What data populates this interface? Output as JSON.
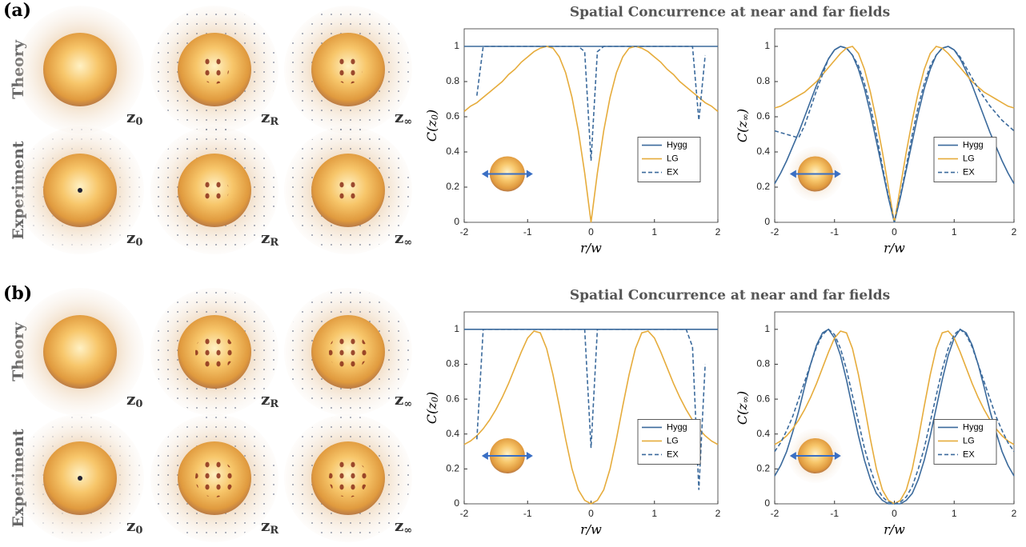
{
  "panels": [
    {
      "label": "(a)",
      "title": "Spatial Concurrence at near and far fields",
      "rows": [
        "Theory",
        "Experiment"
      ],
      "image_labels": [
        [
          "z",
          "0"
        ],
        [
          "z",
          "R"
        ],
        [
          "z",
          "∞"
        ],
        [
          "z",
          "0"
        ],
        [
          "z",
          "R"
        ],
        [
          "z",
          "∞"
        ]
      ]
    },
    {
      "label": "(b)",
      "title": "Spatial Concurrence at near and far fields",
      "rows": [
        "Theory",
        "Experiment"
      ],
      "image_labels": [
        [
          "z",
          "0"
        ],
        [
          "z",
          "R"
        ],
        [
          "z",
          "∞"
        ],
        [
          "z",
          "0"
        ],
        [
          "z",
          "R"
        ],
        [
          "z",
          "∞"
        ]
      ]
    }
  ],
  "chart_data": [
    {
      "type": "line",
      "xlabel": "r/w",
      "ylabel": [
        "C(z",
        "0",
        ")"
      ],
      "x": [
        -2,
        -1.9,
        -1.8,
        -1.7,
        -1.6,
        -1.5,
        -1.4,
        -1.3,
        -1.2,
        -1.1,
        -1,
        -0.9,
        -0.8,
        -0.7,
        -0.6,
        -0.5,
        -0.4,
        -0.3,
        -0.2,
        -0.1,
        0,
        0.1,
        0.2,
        0.3,
        0.4,
        0.5,
        0.6,
        0.7,
        0.8,
        0.9,
        1,
        1.1,
        1.2,
        1.3,
        1.4,
        1.5,
        1.6,
        1.7,
        1.8,
        1.9,
        2
      ],
      "series": [
        {
          "name": "Hygg",
          "color": "#3b6a9c",
          "dash": false,
          "values": [
            1,
            1,
            1,
            1,
            1,
            1,
            1,
            1,
            1,
            1,
            1,
            1,
            1,
            1,
            1,
            1,
            1,
            1,
            1,
            1,
            1,
            1,
            1,
            1,
            1,
            1,
            1,
            1,
            1,
            1,
            1,
            1,
            1,
            1,
            1,
            1,
            1,
            1,
            1,
            1,
            1
          ]
        },
        {
          "name": "LG",
          "color": "#e6ac3c",
          "dash": false,
          "values": [
            0.63,
            0.66,
            0.68,
            0.71,
            0.74,
            0.77,
            0.8,
            0.84,
            0.87,
            0.91,
            0.94,
            0.97,
            0.99,
            1,
            0.99,
            0.94,
            0.85,
            0.71,
            0.52,
            0.28,
            0,
            0.28,
            0.52,
            0.71,
            0.85,
            0.94,
            0.99,
            1,
            0.99,
            0.97,
            0.94,
            0.91,
            0.87,
            0.84,
            0.8,
            0.77,
            0.74,
            0.71,
            0.68,
            0.66,
            0.63
          ]
        },
        {
          "name": "EX",
          "color": "#3b6a9c",
          "dash": true,
          "values": [
            null,
            null,
            0.72,
            1,
            1,
            1,
            1,
            1,
            1,
            1,
            1,
            1,
            1,
            1,
            1,
            1,
            1,
            1,
            1,
            0.97,
            0.35,
            0.97,
            1,
            1,
            1,
            1,
            1,
            1,
            1,
            1,
            1,
            1,
            1,
            1,
            1,
            1,
            1,
            0.58,
            0.95,
            null,
            null
          ]
        }
      ],
      "xlim": [
        -2,
        2
      ],
      "ylim": [
        0,
        1.1
      ],
      "xticks": [
        -2,
        -1,
        0,
        1,
        2
      ],
      "yticks": [
        0,
        0.2,
        0.4,
        0.6,
        0.8,
        1
      ],
      "legend": "lower right"
    },
    {
      "type": "line",
      "xlabel": "r/w",
      "ylabel": [
        "C(z",
        "∞",
        ")"
      ],
      "x": [
        -2,
        -1.9,
        -1.8,
        -1.7,
        -1.6,
        -1.5,
        -1.4,
        -1.3,
        -1.2,
        -1.1,
        -1,
        -0.9,
        -0.8,
        -0.7,
        -0.6,
        -0.5,
        -0.4,
        -0.3,
        -0.2,
        -0.1,
        0,
        0.1,
        0.2,
        0.3,
        0.4,
        0.5,
        0.6,
        0.7,
        0.8,
        0.9,
        1,
        1.1,
        1.2,
        1.3,
        1.4,
        1.5,
        1.6,
        1.7,
        1.8,
        1.9,
        2
      ],
      "series": [
        {
          "name": "Hygg",
          "color": "#3b6a9c",
          "dash": false,
          "values": [
            0.22,
            0.28,
            0.35,
            0.43,
            0.51,
            0.6,
            0.69,
            0.78,
            0.86,
            0.93,
            0.98,
            1,
            0.99,
            0.95,
            0.87,
            0.76,
            0.62,
            0.46,
            0.3,
            0.14,
            0,
            0.14,
            0.3,
            0.46,
            0.62,
            0.76,
            0.87,
            0.95,
            0.99,
            1,
            0.98,
            0.93,
            0.86,
            0.78,
            0.69,
            0.6,
            0.51,
            0.43,
            0.35,
            0.28,
            0.22
          ]
        },
        {
          "name": "LG",
          "color": "#e6ac3c",
          "dash": false,
          "values": [
            0.65,
            0.66,
            0.68,
            0.7,
            0.72,
            0.74,
            0.77,
            0.8,
            0.84,
            0.88,
            0.92,
            0.96,
            0.99,
            1,
            0.96,
            0.87,
            0.74,
            0.58,
            0.4,
            0.2,
            0,
            0.2,
            0.4,
            0.58,
            0.74,
            0.87,
            0.96,
            1,
            0.99,
            0.96,
            0.92,
            0.88,
            0.84,
            0.8,
            0.77,
            0.74,
            0.72,
            0.7,
            0.68,
            0.66,
            0.65
          ]
        },
        {
          "name": "EX",
          "color": "#3b6a9c",
          "dash": true,
          "values": [
            0.52,
            0.51,
            0.5,
            0.49,
            0.48,
            0.55,
            0.65,
            0.75,
            0.84,
            0.93,
            0.98,
            1,
            0.99,
            0.95,
            0.89,
            0.79,
            0.66,
            0.5,
            0.32,
            0.15,
            0,
            0.15,
            0.32,
            0.5,
            0.66,
            0.79,
            0.89,
            0.95,
            0.99,
            1,
            0.98,
            0.94,
            0.88,
            0.82,
            0.76,
            0.71,
            0.66,
            0.62,
            0.58,
            0.55,
            0.52
          ]
        }
      ],
      "xlim": [
        -2,
        2
      ],
      "ylim": [
        0,
        1.1
      ],
      "xticks": [
        -2,
        -1,
        0,
        1,
        2
      ],
      "yticks": [
        0,
        0.2,
        0.4,
        0.6,
        0.8,
        1
      ],
      "legend": "lower right"
    },
    {
      "type": "line",
      "xlabel": "r/w",
      "ylabel": [
        "C(z",
        "0",
        ")"
      ],
      "x": [
        -2,
        -1.9,
        -1.8,
        -1.7,
        -1.6,
        -1.5,
        -1.4,
        -1.3,
        -1.2,
        -1.1,
        -1,
        -0.9,
        -0.8,
        -0.7,
        -0.6,
        -0.5,
        -0.4,
        -0.3,
        -0.2,
        -0.1,
        0,
        0.1,
        0.2,
        0.3,
        0.4,
        0.5,
        0.6,
        0.7,
        0.8,
        0.9,
        1,
        1.1,
        1.2,
        1.3,
        1.4,
        1.5,
        1.6,
        1.7,
        1.8,
        1.9,
        2
      ],
      "series": [
        {
          "name": "Hygg",
          "color": "#3b6a9c",
          "dash": false,
          "values": [
            1,
            1,
            1,
            1,
            1,
            1,
            1,
            1,
            1,
            1,
            1,
            1,
            1,
            1,
            1,
            1,
            1,
            1,
            1,
            1,
            1,
            1,
            1,
            1,
            1,
            1,
            1,
            1,
            1,
            1,
            1,
            1,
            1,
            1,
            1,
            1,
            1,
            1,
            1,
            1,
            1
          ]
        },
        {
          "name": "LG",
          "color": "#e6ac3c",
          "dash": false,
          "values": [
            0.34,
            0.36,
            0.39,
            0.43,
            0.48,
            0.54,
            0.61,
            0.69,
            0.78,
            0.87,
            0.95,
            0.99,
            0.98,
            0.89,
            0.74,
            0.56,
            0.37,
            0.2,
            0.08,
            0.02,
            0,
            0.02,
            0.08,
            0.2,
            0.37,
            0.56,
            0.74,
            0.89,
            0.98,
            0.99,
            0.95,
            0.87,
            0.78,
            0.69,
            0.61,
            0.54,
            0.48,
            0.43,
            0.39,
            0.36,
            0.34
          ]
        },
        {
          "name": "EX",
          "color": "#3b6a9c",
          "dash": true,
          "values": [
            null,
            null,
            0.37,
            1,
            1,
            1,
            1,
            1,
            1,
            1,
            1,
            1,
            1,
            1,
            1,
            1,
            1,
            1,
            1,
            1,
            0.32,
            1,
            1,
            1,
            1,
            1,
            1,
            1,
            1,
            1,
            1,
            1,
            1,
            1,
            1,
            1,
            0.9,
            0.08,
            0.8,
            null,
            null
          ]
        }
      ],
      "xlim": [
        -2,
        2
      ],
      "ylim": [
        0,
        1.1
      ],
      "xticks": [
        -2,
        -1,
        0,
        1,
        2
      ],
      "yticks": [
        0,
        0.2,
        0.4,
        0.6,
        0.8,
        1
      ],
      "legend": "lower right"
    },
    {
      "type": "line",
      "xlabel": "r/w",
      "ylabel": [
        "C(z",
        "∞",
        ")"
      ],
      "x": [
        -2,
        -1.9,
        -1.8,
        -1.7,
        -1.6,
        -1.5,
        -1.4,
        -1.3,
        -1.2,
        -1.1,
        -1,
        -0.9,
        -0.8,
        -0.7,
        -0.6,
        -0.5,
        -0.4,
        -0.3,
        -0.2,
        -0.1,
        0,
        0.1,
        0.2,
        0.3,
        0.4,
        0.5,
        0.6,
        0.7,
        0.8,
        0.9,
        1,
        1.1,
        1.2,
        1.3,
        1.4,
        1.5,
        1.6,
        1.7,
        1.8,
        1.9,
        2
      ],
      "series": [
        {
          "name": "Hygg",
          "color": "#3b6a9c",
          "dash": false,
          "values": [
            0.16,
            0.22,
            0.3,
            0.41,
            0.53,
            0.67,
            0.8,
            0.91,
            0.98,
            1,
            0.95,
            0.85,
            0.71,
            0.55,
            0.39,
            0.25,
            0.14,
            0.06,
            0.02,
            0,
            0,
            0,
            0.02,
            0.06,
            0.14,
            0.25,
            0.39,
            0.55,
            0.71,
            0.85,
            0.95,
            1,
            0.98,
            0.91,
            0.8,
            0.67,
            0.53,
            0.41,
            0.3,
            0.22,
            0.16
          ]
        },
        {
          "name": "LG",
          "color": "#e6ac3c",
          "dash": false,
          "values": [
            0.34,
            0.36,
            0.39,
            0.43,
            0.48,
            0.54,
            0.61,
            0.69,
            0.78,
            0.87,
            0.95,
            0.99,
            0.98,
            0.89,
            0.74,
            0.56,
            0.37,
            0.2,
            0.08,
            0.02,
            0,
            0.02,
            0.08,
            0.2,
            0.37,
            0.56,
            0.74,
            0.89,
            0.98,
            0.99,
            0.95,
            0.87,
            0.78,
            0.69,
            0.61,
            0.54,
            0.48,
            0.43,
            0.39,
            0.36,
            0.34
          ]
        },
        {
          "name": "EX",
          "color": "#3b6a9c",
          "dash": true,
          "values": [
            0.3,
            0.35,
            0.42,
            0.5,
            0.6,
            0.7,
            0.8,
            0.9,
            0.97,
            1,
            0.97,
            0.89,
            0.77,
            0.62,
            0.47,
            0.32,
            0.2,
            0.1,
            0.04,
            0.01,
            0,
            0.01,
            0.04,
            0.1,
            0.2,
            0.32,
            0.47,
            0.62,
            0.77,
            0.89,
            0.97,
            1,
            0.97,
            0.9,
            0.8,
            0.7,
            0.6,
            0.5,
            0.42,
            0.35,
            0.3
          ]
        }
      ],
      "xlim": [
        -2,
        2
      ],
      "ylim": [
        0,
        1.1
      ],
      "xticks": [
        -2,
        -1,
        0,
        1,
        2
      ],
      "yticks": [
        0,
        0.2,
        0.4,
        0.6,
        0.8,
        1
      ],
      "legend": "lower right"
    }
  ]
}
